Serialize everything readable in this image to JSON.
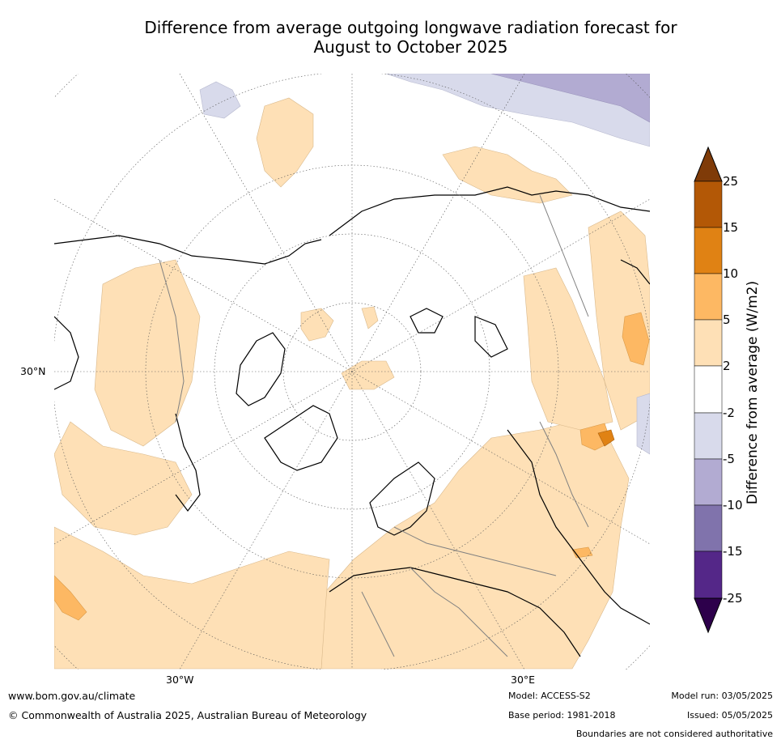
{
  "title": {
    "line1": "Difference from average outgoing longwave radiation forecast for",
    "line2": "August to October 2025"
  },
  "map": {
    "projection": "north polar stereographic",
    "lat_labels": [
      "30°N"
    ],
    "lon_labels": [
      "30°W",
      "30°E"
    ]
  },
  "colorbar": {
    "title": "Difference from average (W/m2)",
    "ticks": [
      "25",
      "15",
      "10",
      "5",
      "2",
      "-2",
      "-5",
      "-10",
      "-15",
      "-25"
    ],
    "colors": {
      "above_25": "#7f3b08",
      "15_25": "#b35806",
      "10_15": "#e08214",
      "5_10": "#fdb863",
      "2_5": "#fee0b6",
      "neutral": "#ffffff",
      "m5_m2": "#d8daeb",
      "m10_m5": "#b2abd2",
      "m15_m10": "#8073ac",
      "m25_m15": "#542788",
      "below_m25": "#2d004b"
    }
  },
  "footer": {
    "website": "www.bom.gov.au/climate",
    "copyright": "© Commonwealth of Australia 2025, Australian Bureau of Meteorology",
    "model": "Model: ACCESS-S2",
    "base_period": "Base period: 1981-2018",
    "model_run": "Model run: 03/05/2025",
    "issued": "Issued: 05/05/2025",
    "disclaimer": "Boundaries are not considered authoritative"
  }
}
